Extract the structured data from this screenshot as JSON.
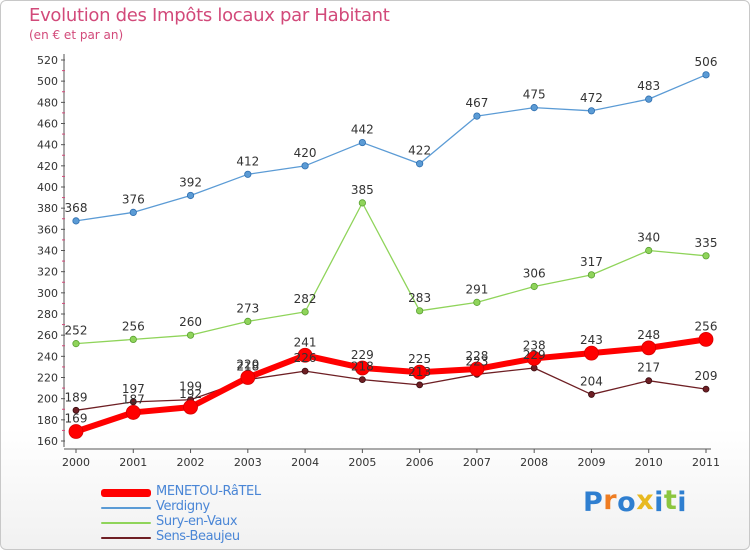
{
  "header": {
    "title": "Evolution des Impôts locaux par Habitant",
    "subtitle": "(en € et par an)"
  },
  "logo": {
    "letters": [
      "P",
      "r",
      "o",
      "x",
      "i",
      "t",
      "i"
    ],
    "colors": [
      "#2f7fd0",
      "#ef7d22",
      "#2f7fd0",
      "#e8b920",
      "#2f7fd0",
      "#8cc63f",
      "#2f7fd0"
    ]
  },
  "chart_data": {
    "type": "line",
    "x": [
      "2000",
      "2001",
      "2002",
      "2003",
      "2004",
      "2005",
      "2006",
      "2007",
      "2008",
      "2009",
      "2010",
      "2011"
    ],
    "ylim": [
      160,
      520
    ],
    "yticks": [
      160,
      180,
      200,
      220,
      240,
      260,
      280,
      300,
      320,
      340,
      360,
      380,
      400,
      420,
      440,
      460,
      480,
      500,
      520
    ],
    "grid": false,
    "legend_position": "bottom-left",
    "series": [
      {
        "name": "Verdigny",
        "color": "#5b9bd5",
        "values": [
          368,
          376,
          392,
          412,
          420,
          442,
          422,
          467,
          475,
          472,
          483,
          506
        ],
        "labels": [
          "368",
          "376",
          "392",
          "412",
          "420",
          "442",
          "422",
          "467",
          "475",
          "472",
          "483",
          "506"
        ]
      },
      {
        "name": "Sury-en-Vaux",
        "color": "#8fd45a",
        "values": [
          252,
          256,
          260,
          273,
          282,
          385,
          283,
          291,
          306,
          317,
          340,
          335
        ],
        "labels": [
          "252",
          "256",
          "260",
          "273",
          "282",
          "385",
          "283",
          "291",
          "306",
          "317",
          "340",
          "335"
        ]
      },
      {
        "name": "Sens-Beaujeu",
        "color": "#6e1f24",
        "values": [
          189,
          197,
          199,
          218,
          226,
          218,
          213,
          223,
          229,
          204,
          217,
          209
        ],
        "labels": [
          "189",
          "197",
          "199",
          "218",
          "226",
          "218",
          "213",
          "223",
          "229",
          "204",
          "217",
          "209"
        ]
      },
      {
        "name": "MENETOU-RâTEL",
        "color": "#ff0000",
        "values": [
          169,
          187,
          192,
          220,
          241,
          229,
          225,
          228,
          238,
          243,
          248,
          256
        ],
        "labels": [
          "169",
          "187",
          "192",
          "220",
          "241",
          "229",
          "225",
          "228",
          "238",
          "243",
          "248",
          "256"
        ]
      }
    ]
  }
}
